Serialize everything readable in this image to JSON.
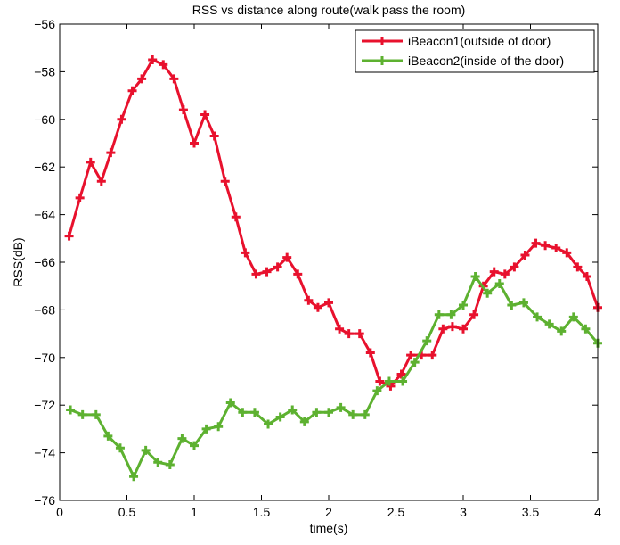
{
  "chart_data": {
    "type": "line",
    "title": "RSS vs distance along route(walk pass the room)",
    "xlabel": "time(s)",
    "ylabel": "RSS(dB)",
    "xlim": [
      0,
      4
    ],
    "ylim": [
      -76,
      -56
    ],
    "xticks": [
      0,
      0.5,
      1,
      1.5,
      2,
      2.5,
      3,
      3.5,
      4
    ],
    "xtick_labels": [
      "0",
      "0.5",
      "1",
      "1.5",
      "2",
      "2.5",
      "3",
      "3.5",
      "4"
    ],
    "yticks": [
      -76,
      -74,
      -72,
      -70,
      -68,
      -66,
      -64,
      -62,
      -60,
      -58,
      -56
    ],
    "ytick_labels": [
      "−76",
      "−74",
      "−72",
      "−70",
      "−68",
      "−66",
      "−64",
      "−62",
      "−60",
      "−58",
      "−56"
    ],
    "grid": false,
    "legend_position": "top-right",
    "series": [
      {
        "name": "iBeacon1(outside of door)",
        "color": "#e8112d",
        "x": [
          0.07,
          0.15,
          0.23,
          0.31,
          0.38,
          0.46,
          0.54,
          0.61,
          0.69,
          0.77,
          0.85,
          0.92,
          1.0,
          1.08,
          1.15,
          1.23,
          1.31,
          1.38,
          1.46,
          1.54,
          1.62,
          1.69,
          1.77,
          1.85,
          1.92,
          2.0,
          2.08,
          2.15,
          2.23,
          2.31,
          2.38,
          2.46,
          2.54,
          2.61,
          2.69,
          2.77,
          2.85,
          2.92,
          3.0,
          3.08,
          3.15,
          3.23,
          3.31,
          3.38,
          3.46,
          3.54,
          3.61,
          3.69,
          3.77,
          3.85,
          3.92,
          4.0
        ],
        "y": [
          -64.9,
          -63.3,
          -61.8,
          -62.6,
          -61.4,
          -60.0,
          -58.8,
          -58.3,
          -57.5,
          -57.7,
          -58.3,
          -59.6,
          -61.0,
          -59.8,
          -60.7,
          -62.6,
          -64.1,
          -65.6,
          -66.5,
          -66.4,
          -66.2,
          -65.8,
          -66.5,
          -67.6,
          -67.9,
          -67.7,
          -68.8,
          -69.0,
          -69.0,
          -69.8,
          -71.0,
          -71.2,
          -70.7,
          -69.9,
          -69.9,
          -69.9,
          -68.8,
          -68.7,
          -68.8,
          -68.2,
          -67.0,
          -66.4,
          -66.5,
          -66.2,
          -65.7,
          -65.2,
          -65.3,
          -65.4,
          -65.6,
          -66.2,
          -66.6,
          -67.9
        ]
      },
      {
        "name": "iBeacon2(inside of the door)",
        "color": "#5db130",
        "x": [
          0.08,
          0.17,
          0.27,
          0.36,
          0.45,
          0.55,
          0.64,
          0.73,
          0.82,
          0.91,
          1.0,
          1.09,
          1.18,
          1.27,
          1.36,
          1.45,
          1.55,
          1.64,
          1.73,
          1.82,
          1.91,
          2.0,
          2.09,
          2.18,
          2.27,
          2.36,
          2.45,
          2.55,
          2.64,
          2.73,
          2.82,
          2.91,
          3.0,
          3.09,
          3.18,
          3.27,
          3.36,
          3.45,
          3.55,
          3.64,
          3.73,
          3.82,
          3.91,
          4.0
        ],
        "y": [
          -72.2,
          -72.4,
          -72.4,
          -73.3,
          -73.8,
          -75.0,
          -73.9,
          -74.4,
          -74.5,
          -73.4,
          -73.7,
          -73.0,
          -72.9,
          -71.9,
          -72.3,
          -72.3,
          -72.8,
          -72.5,
          -72.2,
          -72.7,
          -72.3,
          -72.3,
          -72.1,
          -72.4,
          -72.4,
          -71.4,
          -71.0,
          -71.0,
          -70.2,
          -69.3,
          -68.2,
          -68.2,
          -67.8,
          -66.6,
          -67.3,
          -66.9,
          -67.8,
          -67.7,
          -68.3,
          -68.6,
          -68.9,
          -68.3,
          -68.8,
          -69.4
        ]
      }
    ]
  }
}
